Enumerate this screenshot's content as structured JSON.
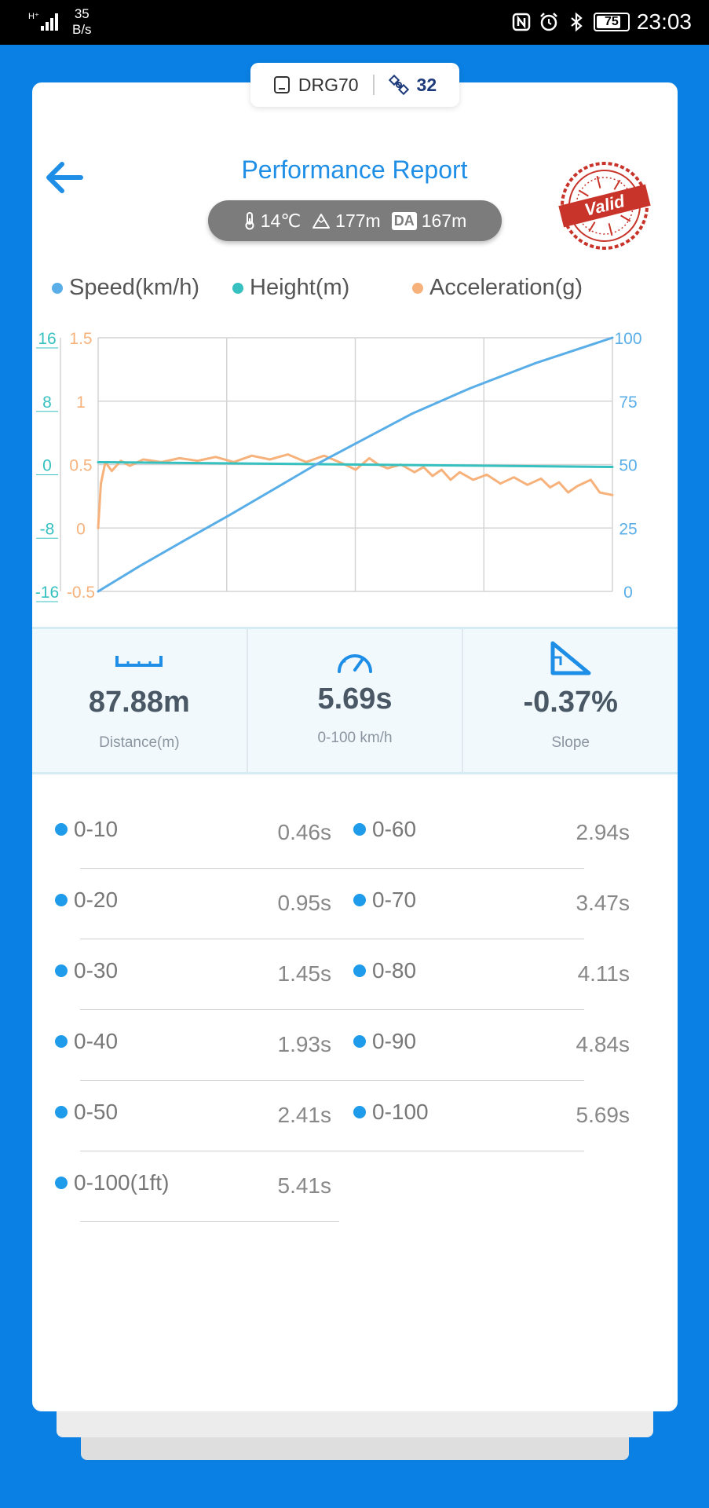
{
  "status": {
    "network": "H⁺",
    "speed_value": "35",
    "speed_unit": "B/s",
    "battery": "75",
    "time": "23:03"
  },
  "device": {
    "name": "DRG70",
    "satellites": "32"
  },
  "header": {
    "title": "Performance Report"
  },
  "conditions": {
    "temperature": "14℃",
    "altitude": "177m",
    "da_label": "DA",
    "density_altitude": "167m"
  },
  "stamp": {
    "text": "Valid"
  },
  "legend": [
    {
      "label": "Speed(km/h)",
      "color": "#5aaee8"
    },
    {
      "label": "Height(m)",
      "color": "#36c1c0"
    },
    {
      "label": "Acceleration(g)",
      "color": "#f7b27c"
    }
  ],
  "chart_data": {
    "type": "line",
    "axes": {
      "height_ticks": [
        "16",
        "8",
        "0",
        "-8",
        "-16"
      ],
      "accel_ticks": [
        "1.5",
        "1",
        "0.5",
        "0",
        "-0.5"
      ],
      "speed_ticks": [
        "100",
        "75",
        "50",
        "25",
        "0"
      ],
      "height_range": [
        -16,
        16
      ],
      "accel_range": [
        -0.5,
        1.5
      ],
      "speed_range": [
        0,
        100
      ]
    },
    "x_range": [
      0,
      5.69
    ],
    "grid": true,
    "series": [
      {
        "name": "Speed(km/h)",
        "color": "#5aaee8",
        "x": [
          0,
          0.46,
          0.95,
          1.45,
          1.93,
          2.41,
          2.94,
          3.47,
          4.11,
          4.84,
          5.69
        ],
        "y": [
          0,
          10,
          20,
          30,
          40,
          50,
          60,
          70,
          80,
          90,
          100
        ]
      },
      {
        "name": "Height(m)",
        "color": "#36c1c0",
        "x": [
          0,
          0.1,
          5.69
        ],
        "y": [
          0.3,
          0.3,
          -0.3
        ]
      },
      {
        "name": "Acceleration(g)",
        "color": "#f7b27c",
        "x": [
          0,
          0.03,
          0.08,
          0.15,
          0.25,
          0.35,
          0.5,
          0.7,
          0.9,
          1.1,
          1.3,
          1.5,
          1.7,
          1.9,
          2.1,
          2.3,
          2.5,
          2.7,
          2.85,
          3.0,
          3.1,
          3.2,
          3.35,
          3.5,
          3.6,
          3.7,
          3.8,
          3.9,
          4.0,
          4.15,
          4.3,
          4.45,
          4.6,
          4.75,
          4.9,
          5.0,
          5.1,
          5.2,
          5.3,
          5.45,
          5.55,
          5.69
        ],
        "y": [
          0,
          0.35,
          0.52,
          0.45,
          0.53,
          0.49,
          0.54,
          0.52,
          0.55,
          0.53,
          0.56,
          0.52,
          0.57,
          0.54,
          0.58,
          0.52,
          0.57,
          0.51,
          0.46,
          0.55,
          0.5,
          0.47,
          0.5,
          0.44,
          0.48,
          0.41,
          0.46,
          0.38,
          0.44,
          0.38,
          0.42,
          0.35,
          0.4,
          0.34,
          0.39,
          0.32,
          0.36,
          0.28,
          0.33,
          0.38,
          0.28,
          0.26
        ]
      }
    ]
  },
  "stats": [
    {
      "value": "87.88m",
      "label": "Distance(m)",
      "icon": "ruler-icon"
    },
    {
      "value": "5.69s",
      "label": "0-100 km/h",
      "icon": "speedometer-icon"
    },
    {
      "value": "-0.37%",
      "label": "Slope",
      "icon": "slope-icon"
    }
  ],
  "splits_left": [
    {
      "label": "0-10",
      "value": "0.46s"
    },
    {
      "label": "0-20",
      "value": "0.95s"
    },
    {
      "label": "0-30",
      "value": "1.45s"
    },
    {
      "label": "0-40",
      "value": "1.93s"
    },
    {
      "label": "0-50",
      "value": "2.41s"
    },
    {
      "label": "0-100(1ft)",
      "value": "5.41s"
    }
  ],
  "splits_right": [
    {
      "label": "0-60",
      "value": "2.94s"
    },
    {
      "label": "0-70",
      "value": "3.47s"
    },
    {
      "label": "0-80",
      "value": "4.11s"
    },
    {
      "label": "0-90",
      "value": "4.84s"
    },
    {
      "label": "0-100",
      "value": "5.69s"
    }
  ]
}
